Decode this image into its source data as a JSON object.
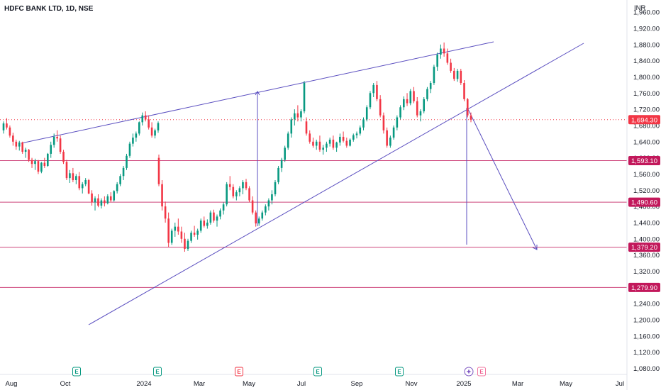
{
  "chart_data": {
    "type": "candlestick",
    "title": "HDFC BANK LTD, 1D, NSE",
    "currency": "INR",
    "y_ticks": [
      1080,
      1120,
      1160,
      1200,
      1240,
      1280,
      1320,
      1360,
      1400,
      1440,
      1480,
      1520,
      1560,
      1600,
      1640,
      1680,
      1720,
      1760,
      1800,
      1840,
      1880,
      1920,
      1960
    ],
    "ylim": [
      1065,
      1990
    ],
    "x_labels": [
      "Aug",
      "Oct",
      "2024",
      "Mar",
      "May",
      "Jul",
      "Sep",
      "Nov",
      "2025",
      "Mar",
      "May",
      "Jul"
    ],
    "up_color": "#089981",
    "down_color": "#f23645",
    "last_price": {
      "value": 1694.3,
      "label": "1,694.30",
      "color": "#f23645"
    },
    "horizontal_levels": [
      {
        "value": 1593.1,
        "label": "1,593.10",
        "color": "#c2185b"
      },
      {
        "value": 1490.6,
        "label": "1,490.60",
        "color": "#c2185b"
      },
      {
        "value": 1379.2,
        "label": "1,379.20",
        "color": "#c2185b"
      },
      {
        "value": 1279.9,
        "label": "1,279.90",
        "color": "#c2185b"
      }
    ],
    "trendline_color": "#5b4fc0",
    "events": [
      {
        "at": "Oct",
        "letter": "E",
        "kind": "earnings",
        "color": "#089981"
      },
      {
        "at": "2024",
        "letter": "E",
        "kind": "earnings",
        "color": "#089981"
      },
      {
        "at": "Mar",
        "letter": "E",
        "kind": "earnings",
        "color": "#f23645"
      },
      {
        "at": "Jul",
        "letter": "E",
        "kind": "earnings",
        "color": "#089981"
      },
      {
        "at": "Sep",
        "letter": "E",
        "kind": "earnings",
        "color": "#089981"
      },
      {
        "at": "2025",
        "letter": "",
        "kind": "dividend",
        "color": "#7e57c2"
      },
      {
        "at": "2025",
        "letter": "E",
        "kind": "earnings-upcoming",
        "color": "#e91e63"
      }
    ],
    "candles": [
      [
        1668,
        1690,
        1660,
        1685
      ],
      [
        1685,
        1698,
        1670,
        1675
      ],
      [
        1675,
        1680,
        1650,
        1655
      ],
      [
        1655,
        1662,
        1630,
        1640
      ],
      [
        1640,
        1645,
        1620,
        1628
      ],
      [
        1628,
        1642,
        1618,
        1638
      ],
      [
        1638,
        1640,
        1610,
        1615
      ],
      [
        1615,
        1625,
        1600,
        1620
      ],
      [
        1620,
        1622,
        1590,
        1595
      ],
      [
        1595,
        1600,
        1575,
        1585
      ],
      [
        1585,
        1598,
        1570,
        1592
      ],
      [
        1592,
        1595,
        1560,
        1566
      ],
      [
        1566,
        1590,
        1562,
        1588
      ],
      [
        1588,
        1600,
        1575,
        1580
      ],
      [
        1580,
        1612,
        1578,
        1610
      ],
      [
        1610,
        1640,
        1600,
        1632
      ],
      [
        1632,
        1660,
        1625,
        1652
      ],
      [
        1652,
        1668,
        1640,
        1648
      ],
      [
        1648,
        1655,
        1610,
        1615
      ],
      [
        1615,
        1620,
        1585,
        1590
      ],
      [
        1590,
        1595,
        1545,
        1550
      ],
      [
        1550,
        1570,
        1538,
        1562
      ],
      [
        1562,
        1575,
        1540,
        1545
      ],
      [
        1545,
        1560,
        1535,
        1555
      ],
      [
        1555,
        1565,
        1520,
        1525
      ],
      [
        1525,
        1540,
        1512,
        1535
      ],
      [
        1535,
        1550,
        1530,
        1545
      ],
      [
        1545,
        1548,
        1510,
        1512
      ],
      [
        1512,
        1520,
        1482,
        1490
      ],
      [
        1490,
        1505,
        1470,
        1500
      ],
      [
        1500,
        1510,
        1478,
        1482
      ],
      [
        1482,
        1500,
        1475,
        1495
      ],
      [
        1495,
        1505,
        1480,
        1488
      ],
      [
        1488,
        1510,
        1485,
        1505
      ],
      [
        1505,
        1515,
        1490,
        1495
      ],
      [
        1495,
        1520,
        1492,
        1518
      ],
      [
        1518,
        1540,
        1512,
        1535
      ],
      [
        1535,
        1560,
        1530,
        1555
      ],
      [
        1555,
        1580,
        1545,
        1575
      ],
      [
        1575,
        1610,
        1570,
        1605
      ],
      [
        1605,
        1640,
        1600,
        1635
      ],
      [
        1635,
        1660,
        1628,
        1650
      ],
      [
        1650,
        1665,
        1640,
        1660
      ],
      [
        1660,
        1690,
        1655,
        1688
      ],
      [
        1688,
        1712,
        1680,
        1705
      ],
      [
        1705,
        1715,
        1690,
        1695
      ],
      [
        1695,
        1705,
        1670,
        1675
      ],
      [
        1675,
        1688,
        1650,
        1655
      ],
      [
        1655,
        1672,
        1648,
        1668
      ],
      [
        1668,
        1690,
        1662,
        1686
      ],
      [
        1600,
        1608,
        1530,
        1535
      ],
      [
        1535,
        1545,
        1470,
        1480
      ],
      [
        1480,
        1492,
        1440,
        1450
      ],
      [
        1450,
        1465,
        1380,
        1390
      ],
      [
        1390,
        1425,
        1385,
        1420
      ],
      [
        1420,
        1440,
        1405,
        1430
      ],
      [
        1430,
        1450,
        1410,
        1418
      ],
      [
        1418,
        1430,
        1390,
        1400
      ],
      [
        1400,
        1415,
        1368,
        1375
      ],
      [
        1375,
        1400,
        1370,
        1395
      ],
      [
        1395,
        1420,
        1390,
        1415
      ],
      [
        1415,
        1432,
        1405,
        1410
      ],
      [
        1410,
        1425,
        1398,
        1420
      ],
      [
        1420,
        1450,
        1415,
        1445
      ],
      [
        1445,
        1455,
        1428,
        1432
      ],
      [
        1432,
        1448,
        1425,
        1440
      ],
      [
        1440,
        1470,
        1435,
        1465
      ],
      [
        1465,
        1472,
        1440,
        1445
      ],
      [
        1445,
        1460,
        1430,
        1455
      ],
      [
        1455,
        1475,
        1448,
        1470
      ],
      [
        1470,
        1490,
        1460,
        1485
      ],
      [
        1485,
        1540,
        1480,
        1535
      ],
      [
        1535,
        1555,
        1520,
        1528
      ],
      [
        1528,
        1535,
        1500,
        1505
      ],
      [
        1505,
        1520,
        1495,
        1515
      ],
      [
        1515,
        1530,
        1505,
        1525
      ],
      [
        1525,
        1545,
        1510,
        1540
      ],
      [
        1540,
        1548,
        1520,
        1525
      ],
      [
        1525,
        1530,
        1490,
        1495
      ],
      [
        1495,
        1505,
        1460,
        1465
      ],
      [
        1465,
        1470,
        1430,
        1438
      ],
      [
        1438,
        1455,
        1432,
        1450
      ],
      [
        1450,
        1470,
        1445,
        1465
      ],
      [
        1465,
        1485,
        1458,
        1480
      ],
      [
        1480,
        1500,
        1470,
        1495
      ],
      [
        1495,
        1520,
        1485,
        1510
      ],
      [
        1510,
        1545,
        1505,
        1540
      ],
      [
        1540,
        1580,
        1535,
        1575
      ],
      [
        1575,
        1600,
        1565,
        1595
      ],
      [
        1595,
        1630,
        1590,
        1625
      ],
      [
        1625,
        1665,
        1620,
        1660
      ],
      [
        1660,
        1700,
        1650,
        1695
      ],
      [
        1695,
        1720,
        1680,
        1710
      ],
      [
        1710,
        1730,
        1690,
        1700
      ],
      [
        1700,
        1720,
        1690,
        1715
      ],
      [
        1715,
        1790,
        1710,
        1785
      ],
      [
        1690,
        1700,
        1655,
        1660
      ],
      [
        1660,
        1668,
        1635,
        1640
      ],
      [
        1640,
        1650,
        1625,
        1630
      ],
      [
        1630,
        1645,
        1620,
        1640
      ],
      [
        1640,
        1655,
        1615,
        1620
      ],
      [
        1620,
        1632,
        1608,
        1625
      ],
      [
        1625,
        1640,
        1615,
        1635
      ],
      [
        1635,
        1650,
        1628,
        1645
      ],
      [
        1645,
        1655,
        1620,
        1625
      ],
      [
        1625,
        1640,
        1615,
        1638
      ],
      [
        1638,
        1660,
        1630,
        1652
      ],
      [
        1652,
        1665,
        1638,
        1642
      ],
      [
        1642,
        1650,
        1625,
        1630
      ],
      [
        1630,
        1648,
        1628,
        1645
      ],
      [
        1645,
        1660,
        1640,
        1656
      ],
      [
        1656,
        1665,
        1648,
        1660
      ],
      [
        1660,
        1680,
        1655,
        1675
      ],
      [
        1675,
        1700,
        1668,
        1695
      ],
      [
        1695,
        1730,
        1690,
        1725
      ],
      [
        1725,
        1765,
        1720,
        1760
      ],
      [
        1760,
        1785,
        1750,
        1780
      ],
      [
        1780,
        1790,
        1740,
        1745
      ],
      [
        1745,
        1755,
        1700,
        1705
      ],
      [
        1705,
        1712,
        1660,
        1668
      ],
      [
        1668,
        1675,
        1625,
        1630
      ],
      [
        1630,
        1655,
        1625,
        1650
      ],
      [
        1650,
        1680,
        1645,
        1675
      ],
      [
        1675,
        1705,
        1668,
        1700
      ],
      [
        1700,
        1730,
        1695,
        1725
      ],
      [
        1725,
        1752,
        1718,
        1745
      ],
      [
        1745,
        1760,
        1728,
        1735
      ],
      [
        1735,
        1770,
        1730,
        1765
      ],
      [
        1765,
        1775,
        1735,
        1740
      ],
      [
        1740,
        1750,
        1700,
        1705
      ],
      [
        1705,
        1720,
        1690,
        1715
      ],
      [
        1715,
        1750,
        1710,
        1745
      ],
      [
        1745,
        1775,
        1740,
        1770
      ],
      [
        1770,
        1790,
        1760,
        1785
      ],
      [
        1785,
        1830,
        1780,
        1825
      ],
      [
        1825,
        1860,
        1815,
        1855
      ],
      [
        1855,
        1880,
        1845,
        1870
      ],
      [
        1870,
        1885,
        1850,
        1858
      ],
      [
        1858,
        1870,
        1830,
        1835
      ],
      [
        1835,
        1845,
        1810,
        1815
      ],
      [
        1815,
        1822,
        1790,
        1795
      ],
      [
        1795,
        1820,
        1788,
        1815
      ],
      [
        1815,
        1820,
        1780,
        1785
      ],
      [
        1785,
        1792,
        1740,
        1745
      ],
      [
        1745,
        1748,
        1700,
        1705
      ],
      [
        1705,
        1712,
        1688,
        1694.3
      ]
    ]
  }
}
